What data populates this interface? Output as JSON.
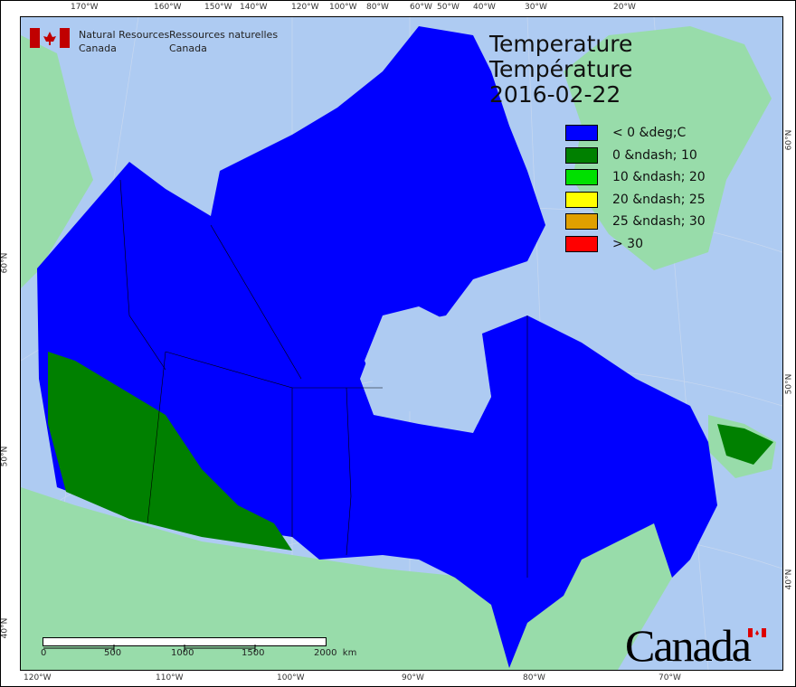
{
  "title": {
    "line1": "Temperature",
    "line2": "Température",
    "date": "2016-02-22"
  },
  "org": {
    "en_line1": "Natural Resources",
    "en_line2": "Canada",
    "fr_line1": "Ressources naturelles",
    "fr_line2": "Canada",
    "flag_icon": "canada-flag-icon"
  },
  "legend": [
    {
      "label": "< 0 &deg;C",
      "color": "#0000ff"
    },
    {
      "label": "0 &ndash; 10",
      "color": "#008000"
    },
    {
      "label": "10 &ndash; 20",
      "color": "#00e000"
    },
    {
      "label": "20 &ndash; 25",
      "color": "#ffff00"
    },
    {
      "label": "25 &ndash; 30",
      "color": "#e0a000"
    },
    {
      "label": "> 30",
      "color": "#ff0000"
    }
  ],
  "top_ticks": [
    "170°W",
    "160°W",
    "150°W",
    "140°W",
    "120°W",
    "100°W",
    "80°W",
    "60°W",
    "50°W",
    "40°W",
    "30°W",
    "20°W"
  ],
  "bottom_ticks": [
    "120°W",
    "110°W",
    "100°W",
    "90°W",
    "80°W",
    "70°W"
  ],
  "left_ticks": [
    "60°N",
    "50°N",
    "40°N"
  ],
  "right_ticks": [
    "60°N",
    "50°N",
    "40°N"
  ],
  "scale": {
    "labels": [
      "0",
      "500",
      "1000",
      "1500",
      "2000  km"
    ]
  },
  "wordmark": "Canada",
  "colors": {
    "water": "#aecbf2",
    "land": "#98dcaa",
    "below_zero": "#0000ff",
    "zero_to_ten": "#008000"
  }
}
